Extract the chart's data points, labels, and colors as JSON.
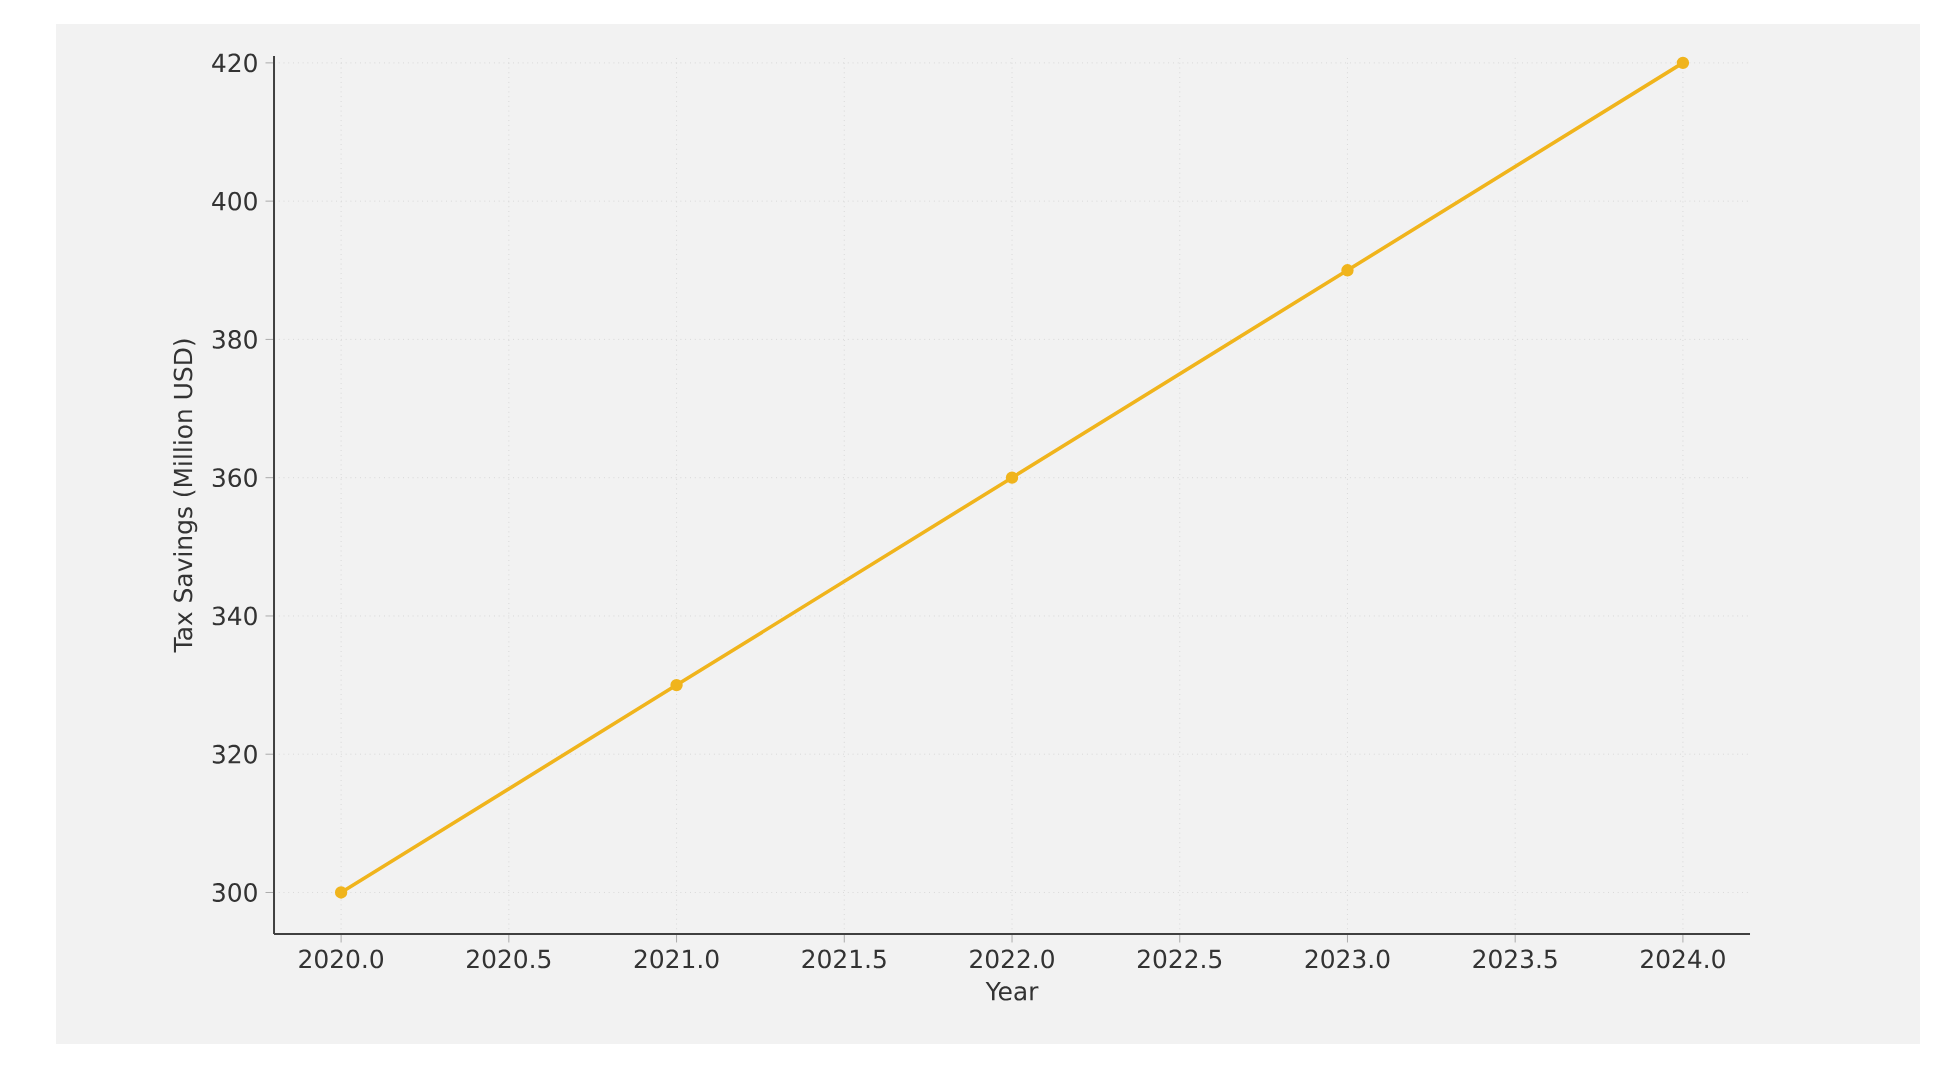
{
  "chart_data": {
    "type": "line",
    "xlabel": "Year",
    "ylabel": "Tax Savings (Million USD)",
    "x": [
      2020,
      2021,
      2022,
      2023,
      2024
    ],
    "series": [
      {
        "color": "#f0b41c",
        "values": [
          300,
          330,
          360,
          390,
          420
        ]
      }
    ],
    "xlim": [
      2019.8,
      2024.2
    ],
    "ylim": [
      294,
      421
    ],
    "xticks": [
      {
        "value": 2020,
        "label": "2020.0"
      },
      {
        "value": 2020.5,
        "label": "2020.5"
      },
      {
        "value": 2021,
        "label": "2021.0"
      },
      {
        "value": 2021.5,
        "label": "2021.5"
      },
      {
        "value": 2022,
        "label": "2022.0"
      },
      {
        "value": 2022.5,
        "label": "2022.5"
      },
      {
        "value": 2023,
        "label": "2023.0"
      },
      {
        "value": 2023.5,
        "label": "2023.5"
      },
      {
        "value": 2024,
        "label": "2024.0"
      }
    ],
    "yticks": [
      300,
      320,
      340,
      360,
      380,
      400,
      420
    ],
    "grid": true,
    "marker": "circle",
    "line_style": "solid"
  }
}
